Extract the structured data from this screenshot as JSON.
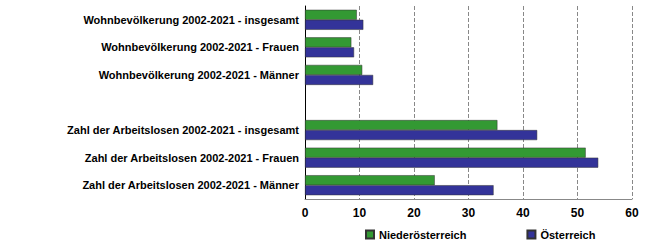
{
  "chart_data": {
    "type": "bar",
    "orientation": "horizontal",
    "categories": [
      "Wohnbevölkerung 2002-2021 - insgesamt",
      "Wohnbevölkerung 2002-2021 - Frauen",
      "Wohnbevölkerung 2002-2021 - Männer",
      null,
      "Zahl der Arbeitslosen 2002-2021 - insgesamt",
      "Zahl der Arbeitslosen 2002-2021 - Frauen",
      "Zahl der Arbeitslosen 2002-2021 - Männer"
    ],
    "series": [
      {
        "name": "Niederösterreich",
        "color": "#339933",
        "values": [
          9.5,
          8.5,
          10.5,
          null,
          35.3,
          51.5,
          23.8
        ]
      },
      {
        "name": "Österreich",
        "color": "#333399",
        "values": [
          10.7,
          9.0,
          12.5,
          null,
          42.6,
          53.8,
          34.6
        ]
      }
    ],
    "xlim": [
      0,
      60
    ],
    "xticks": [
      0,
      10,
      20,
      30,
      40,
      50,
      60
    ],
    "grid": true,
    "legend": "bottom"
  }
}
